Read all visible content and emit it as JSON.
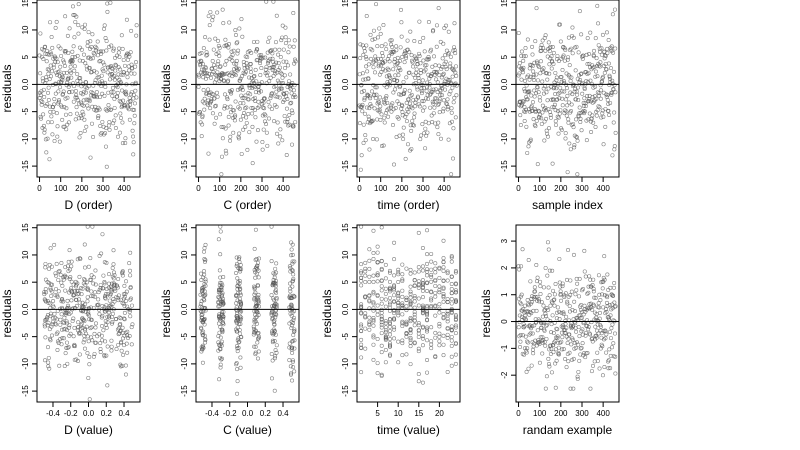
{
  "figure": {
    "rows": 2,
    "cols": 4
  },
  "style": {
    "point_color": "#555555",
    "frame_color": "#000000",
    "refline_color": "#000000",
    "background": "#ffffff"
  },
  "chart_data": [
    {
      "type": "scatter",
      "marker": "open-circle",
      "n_points": 460,
      "x_ticks": [
        "0",
        "100",
        "200",
        "300",
        "400"
      ],
      "y_ticks": [
        "-15",
        "-10",
        "-5",
        "0.0",
        "5",
        "10",
        "15"
      ],
      "xlabel": "D (order)",
      "ylabel": "residuals",
      "xlim": [
        -12,
        475
      ],
      "ylim": [
        -17,
        15.5
      ],
      "x_kind": "index",
      "pattern": "dense",
      "reference_line_y": 0,
      "noise_scale": 5.5
    },
    {
      "type": "scatter",
      "marker": "open-circle",
      "n_points": 460,
      "x_ticks": [
        "0",
        "100",
        "200",
        "300",
        "400"
      ],
      "y_ticks": [
        "-15",
        "-10",
        "-5",
        "0.0",
        "5",
        "10",
        "15"
      ],
      "xlabel": "C (order)",
      "ylabel": "residuals",
      "xlim": [
        -12,
        475
      ],
      "ylim": [
        -17,
        15.5
      ],
      "x_kind": "index",
      "pattern": "dense",
      "reference_line_y": 0,
      "noise_scale": 5.5
    },
    {
      "type": "scatter",
      "marker": "open-circle",
      "n_points": 460,
      "x_ticks": [
        "0",
        "100",
        "200",
        "300",
        "400"
      ],
      "y_ticks": [
        "-15",
        "-10",
        "-5",
        "0.0",
        "5",
        "10",
        "15"
      ],
      "xlabel": "time (order)",
      "ylabel": "residuals",
      "xlim": [
        -12,
        475
      ],
      "ylim": [
        -17,
        15.5
      ],
      "x_kind": "index",
      "pattern": "dense",
      "reference_line_y": 0,
      "noise_scale": 5.5
    },
    {
      "type": "scatter",
      "marker": "open-circle",
      "n_points": 460,
      "x_ticks": [
        "0",
        "100",
        "200",
        "300",
        "400"
      ],
      "y_ticks": [
        "-15",
        "-10",
        "-5",
        "0.0",
        "5",
        "10",
        "15"
      ],
      "xlabel": "sample index",
      "ylabel": "residuals",
      "xlim": [
        -12,
        475
      ],
      "ylim": [
        -17,
        15.5
      ],
      "x_kind": "index",
      "pattern": "dense",
      "reference_line_y": 0,
      "noise_scale": 5.5
    },
    {
      "type": "scatter",
      "marker": "open-circle",
      "n_points": 460,
      "x_ticks": [
        "-0.4",
        "-0.2",
        "0.0",
        "0.2",
        "0.4"
      ],
      "y_ticks": [
        "-15",
        "-10",
        "-5",
        "0.0",
        "5",
        "10",
        "15"
      ],
      "xlabel": "D (value)",
      "ylabel": "residuals",
      "xlim": [
        -0.58,
        0.58
      ],
      "ylim": [
        -17,
        15.5
      ],
      "x_kind": "continuous",
      "pattern": "scattered",
      "reference_line_y": 0,
      "noise_scale": 5.5
    },
    {
      "type": "scatter",
      "marker": "open-circle",
      "n_points": 460,
      "x_ticks": [
        "-0.4",
        "-0.2",
        "0.0",
        "0.2",
        "0.4"
      ],
      "y_ticks": [
        "-15",
        "-10",
        "-5",
        "0.0",
        "5",
        "10",
        "15"
      ],
      "xlabel": "C (value)",
      "ylabel": "residuals",
      "xlim": [
        -0.58,
        0.58
      ],
      "ylim": [
        -17,
        15.5
      ],
      "x_kind": "clustered",
      "clusters": [
        -0.5,
        -0.3,
        -0.1,
        0.1,
        0.3,
        0.5
      ],
      "pattern": "columns",
      "reference_line_y": 0,
      "noise_scale": 5.5
    },
    {
      "type": "scatter",
      "marker": "open-circle",
      "n_points": 460,
      "x_ticks": [
        "5",
        "10",
        "15",
        "20"
      ],
      "y_ticks": [
        "-15",
        "-10",
        "-5",
        "0.0",
        "5",
        "10",
        "15"
      ],
      "xlabel": "time (value)",
      "ylabel": "residuals",
      "xlim": [
        0,
        25
      ],
      "ylim": [
        -17,
        15.5
      ],
      "x_kind": "discrete",
      "discrete_values": [
        1,
        2,
        3,
        4,
        5,
        6,
        7,
        8,
        9,
        10,
        11,
        12,
        13,
        14,
        15,
        16,
        17,
        18,
        19,
        20,
        21,
        22,
        23,
        24
      ],
      "pattern": "columns",
      "reference_line_y": 0,
      "noise_scale": 5.5
    },
    {
      "type": "scatter",
      "marker": "open-circle",
      "n_points": 460,
      "x_ticks": [
        "0",
        "100",
        "200",
        "300",
        "400"
      ],
      "y_ticks": [
        "-2",
        "-1",
        "0",
        "1",
        "2",
        "3"
      ],
      "xlabel": "randam example",
      "ylabel": "residuals",
      "xlim": [
        -12,
        475
      ],
      "ylim": [
        -3.0,
        3.6
      ],
      "x_kind": "index",
      "pattern": "dense",
      "reference_line_y": 0,
      "noise_scale": 1.0
    }
  ]
}
